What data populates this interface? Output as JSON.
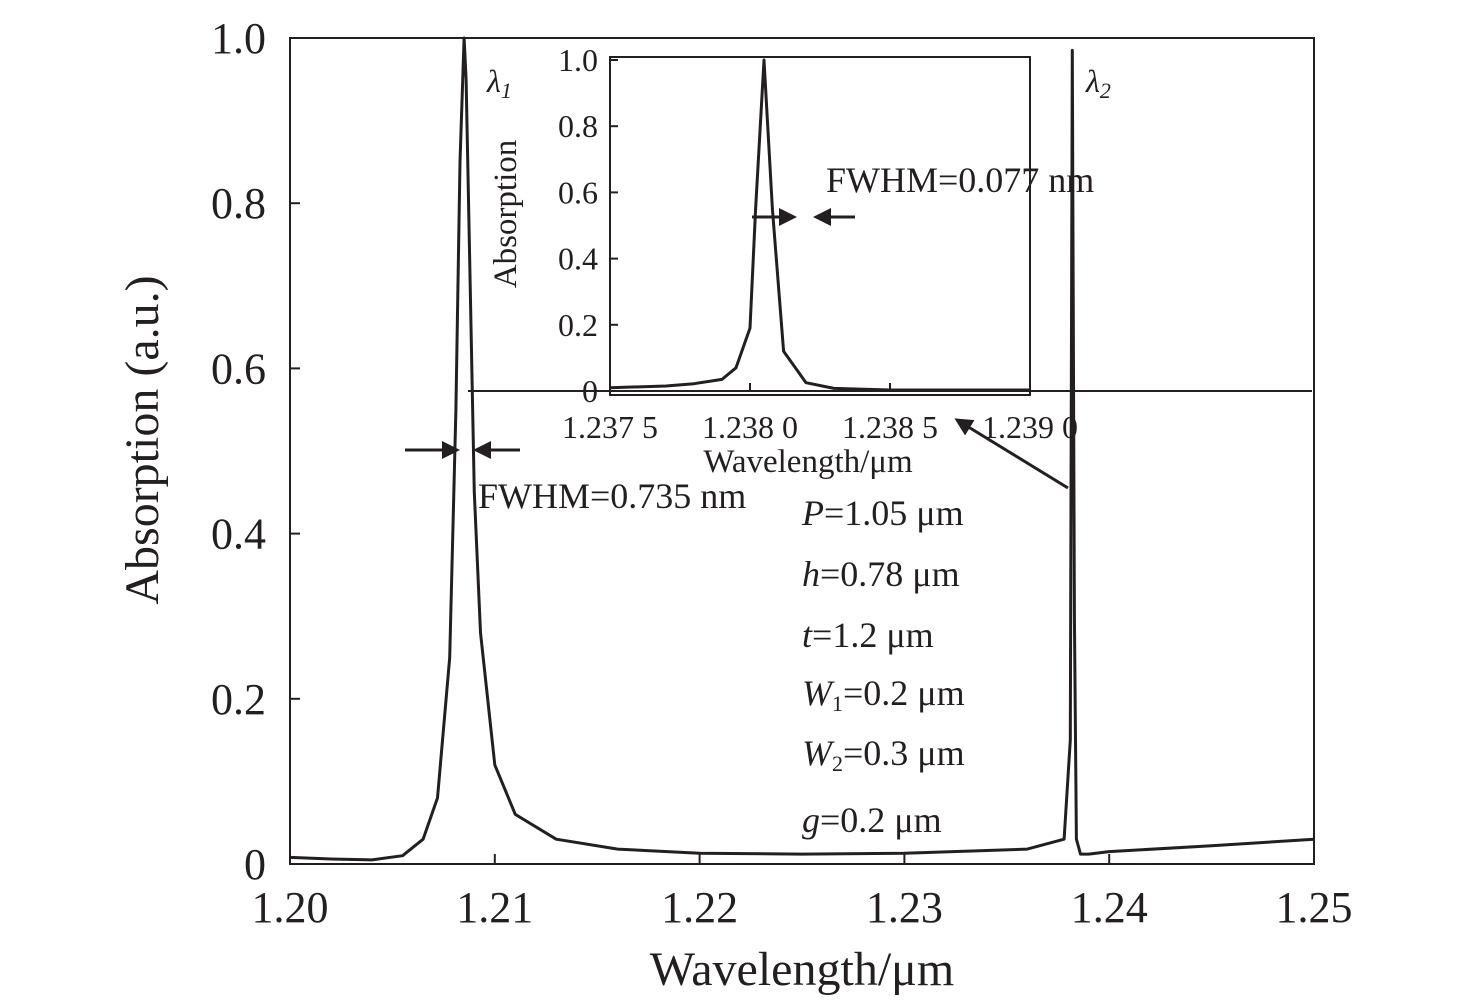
{
  "chart_data": [
    {
      "type": "line",
      "xlabel": "Wavelength/μm",
      "ylabel": "Absorption  (a.u.)",
      "xlim": [
        1.2,
        1.25
      ],
      "ylim": [
        0,
        1.0
      ],
      "xticks": [
        {
          "value": 1.2,
          "label": "1.20"
        },
        {
          "value": 1.21,
          "label": "1.21"
        },
        {
          "value": 1.22,
          "label": "1.22"
        },
        {
          "value": 1.23,
          "label": "1.23"
        },
        {
          "value": 1.24,
          "label": "1.24"
        },
        {
          "value": 1.25,
          "label": "1.25"
        }
      ],
      "yticks": [
        {
          "value": 0,
          "label": "0"
        },
        {
          "value": 0.2,
          "label": "0.2"
        },
        {
          "value": 0.4,
          "label": "0.4"
        },
        {
          "value": 0.6,
          "label": "0.6"
        },
        {
          "value": 0.8,
          "label": "0.8"
        },
        {
          "value": 1.0,
          "label": "1.0"
        }
      ],
      "grid": false,
      "series": [
        {
          "x": [
            1.2,
            1.202,
            1.204,
            1.2055,
            1.2065,
            1.2072,
            1.2078,
            1.2081,
            1.2083,
            1.2085,
            1.2086,
            1.2088,
            1.209,
            1.2093,
            1.21,
            1.211,
            1.213,
            1.216,
            1.22,
            1.225,
            1.23,
            1.236,
            1.2378,
            1.2381,
            1.2382,
            1.2383,
            1.2384,
            1.2386,
            1.239,
            1.24,
            1.245,
            1.25
          ],
          "y": [
            0.008,
            0.006,
            0.005,
            0.01,
            0.03,
            0.08,
            0.25,
            0.55,
            0.85,
            1.0,
            0.95,
            0.7,
            0.45,
            0.28,
            0.12,
            0.06,
            0.03,
            0.018,
            0.013,
            0.012,
            0.013,
            0.018,
            0.03,
            0.15,
            0.985,
            0.3,
            0.03,
            0.012,
            0.012,
            0.015,
            0.022,
            0.03
          ]
        }
      ],
      "annotations": [
        {
          "text": "FWHM=0.735 nm",
          "x": 1.2085,
          "y": 0.5
        },
        {
          "text": "λ",
          "subscript": "1",
          "peak_x": 1.2085
        },
        {
          "text": "λ",
          "subscript": "2",
          "peak_x": 1.2383
        }
      ]
    },
    {
      "type": "line",
      "inset": true,
      "xlabel": "Wavelength/μm",
      "ylabel": "Absorption",
      "xlim": [
        1.2375,
        1.239
      ],
      "ylim": [
        0,
        1.0
      ],
      "xticks": [
        {
          "value": 1.2375,
          "label": "1.237 5"
        },
        {
          "value": 1.238,
          "label": "1.238 0"
        },
        {
          "value": 1.2385,
          "label": "1.238 5"
        },
        {
          "value": 1.239,
          "label": "1.239 0"
        }
      ],
      "yticks": [
        {
          "value": 0,
          "label": "0"
        },
        {
          "value": 0.2,
          "label": "0.2"
        },
        {
          "value": 0.4,
          "label": "0.4"
        },
        {
          "value": 0.6,
          "label": "0.6"
        },
        {
          "value": 0.8,
          "label": "0.8"
        },
        {
          "value": 1.0,
          "label": "1.0"
        }
      ],
      "grid": false,
      "series": [
        {
          "x": [
            1.2375,
            1.2377,
            1.2378,
            1.2379,
            1.23795,
            1.238,
            1.23802,
            1.23805,
            1.23808,
            1.23812,
            1.2382,
            1.2383,
            1.2385,
            1.239
          ],
          "y": [
            0.01,
            0.015,
            0.022,
            0.035,
            0.07,
            0.19,
            0.55,
            1.0,
            0.55,
            0.12,
            0.025,
            0.008,
            0.003,
            0.003
          ]
        }
      ],
      "annotations": [
        {
          "text": "FWHM=0.077 nm",
          "x": 1.23805,
          "y": 0.5
        }
      ]
    }
  ],
  "parameters": {
    "P": {
      "symbol": "P",
      "value": "=1.05 μm"
    },
    "h": {
      "symbol": "h",
      "value": "=0.78 μm"
    },
    "t": {
      "symbol": "t",
      "value": "=1.2 μm"
    },
    "W1": {
      "symbol": "W",
      "sub": "1",
      "value": "=0.2 μm"
    },
    "W2": {
      "symbol": "W",
      "sub": "2",
      "value": "=0.3 μm"
    },
    "g": {
      "symbol": "g",
      "value": "=0.2 μm"
    }
  },
  "colors": {
    "ink": "#231f20",
    "background": "#ffffff"
  }
}
